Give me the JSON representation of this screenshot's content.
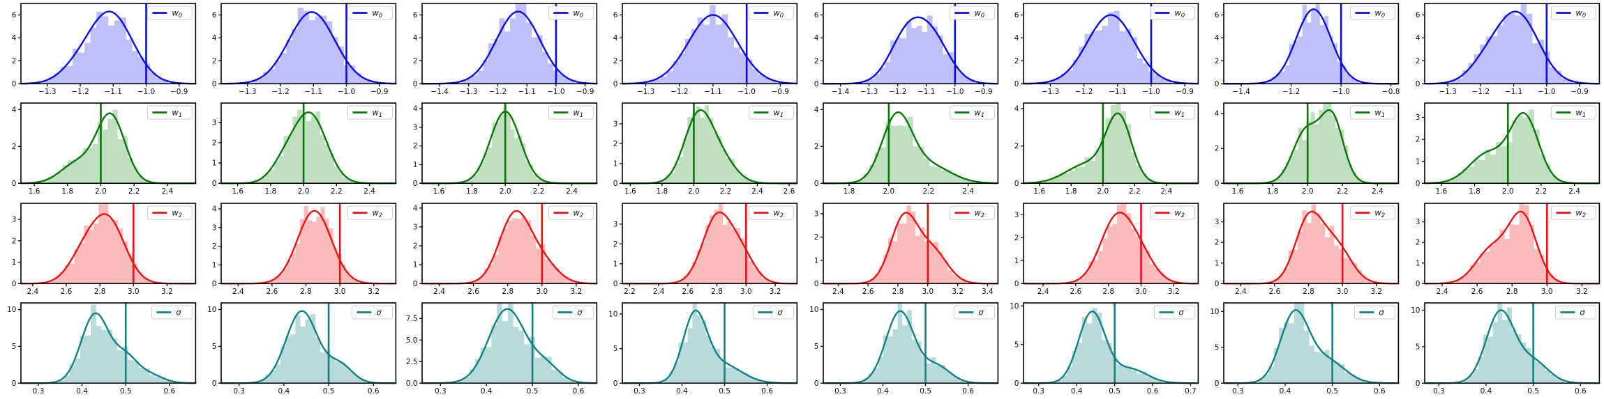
{
  "figure": {
    "background": "#ffffff",
    "grid_rows": 4,
    "grid_cols": 8,
    "description": "Grid of posterior histograms with KDE curves and true-value vertical lines"
  },
  "chart_data": {
    "type": "heatmap",
    "subtype": "histogram-kde-grid",
    "legend_position": "upper right",
    "grid": false,
    "rows": [
      {
        "param": "w0",
        "legend_base": "w",
        "legend_sub": "0",
        "line_color": "#0a0ae6",
        "bar_fill": "rgba(55,55,235,0.32)",
        "vline": -1.0
      },
      {
        "param": "w1",
        "legend_base": "w",
        "legend_sub": "1",
        "line_color": "#067806",
        "bar_fill": "rgba(10,128,10,0.26)",
        "vline": 2.0
      },
      {
        "param": "w2",
        "legend_base": "w",
        "legend_sub": "2",
        "line_color": "#ee1111",
        "bar_fill": "rgba(245,30,30,0.30)",
        "vline": 3.0
      },
      {
        "param": "sigma",
        "legend_base": "σ",
        "legend_sub": "",
        "line_color": "#0f8282",
        "bar_fill": "rgba(22,134,134,0.30)",
        "vline": 0.5
      }
    ],
    "subplots": [
      {
        "r": 0,
        "c": 0,
        "xlim": [
          -1.38,
          -0.85
        ],
        "xticks": [
          -1.3,
          -1.2,
          -1.1,
          -1.0,
          -0.9
        ],
        "ylim": 7.0,
        "yticks": [
          0,
          2,
          4,
          6
        ],
        "mix": [
          [
            -1.11,
            0.068,
            1
          ],
          [
            -1.22,
            0.05,
            0.12
          ]
        ],
        "peak": 6.3
      },
      {
        "r": 0,
        "c": 1,
        "xlim": [
          -1.38,
          -0.85
        ],
        "xticks": [
          -1.3,
          -1.2,
          -1.1,
          -1.0,
          -0.9
        ],
        "ylim": 7.0,
        "yticks": [
          0,
          2,
          4,
          6
        ],
        "mix": [
          [
            -1.105,
            0.07,
            1
          ]
        ],
        "peak": 6.25
      },
      {
        "r": 0,
        "c": 2,
        "xlim": [
          -1.46,
          -0.86
        ],
        "xticks": [
          -1.4,
          -1.3,
          -1.2,
          -1.1,
          -1.0,
          -0.9
        ],
        "ylim": 7.0,
        "yticks": [
          0,
          2,
          4,
          6
        ],
        "mix": [
          [
            -1.13,
            0.075,
            1
          ]
        ],
        "peak": 6.3
      },
      {
        "r": 0,
        "c": 3,
        "xlim": [
          -1.37,
          -0.85
        ],
        "xticks": [
          -1.3,
          -1.2,
          -1.1,
          -1.0,
          -0.9
        ],
        "ylim": 7.0,
        "yticks": [
          0,
          2,
          4,
          6
        ],
        "mix": [
          [
            -1.1,
            0.073,
            1
          ]
        ],
        "peak": 6.0
      },
      {
        "r": 0,
        "c": 4,
        "xlim": [
          -1.46,
          -0.85
        ],
        "xticks": [
          -1.4,
          -1.3,
          -1.2,
          -1.1,
          -1.0,
          -0.9
        ],
        "ylim": 7.0,
        "yticks": [
          0,
          2,
          4,
          6
        ],
        "mix": [
          [
            -1.17,
            0.06,
            0.92
          ],
          [
            -1.08,
            0.062,
            0.88
          ]
        ],
        "peak": 5.8
      },
      {
        "r": 0,
        "c": 5,
        "xlim": [
          -1.38,
          -0.86
        ],
        "xticks": [
          -1.3,
          -1.2,
          -1.1,
          -1.0,
          -0.9
        ],
        "ylim": 7.0,
        "yticks": [
          0,
          2,
          4,
          6
        ],
        "mix": [
          [
            -1.12,
            0.07,
            1
          ]
        ],
        "peak": 6.0
      },
      {
        "r": 0,
        "c": 6,
        "xlim": [
          -1.47,
          -0.77
        ],
        "xticks": [
          -1.4,
          -1.2,
          -1.0,
          -0.8
        ],
        "ylim": 7.0,
        "yticks": [
          0,
          2,
          4,
          6
        ],
        "mix": [
          [
            -1.11,
            0.07,
            1
          ]
        ],
        "peak": 6.5
      },
      {
        "r": 0,
        "c": 7,
        "xlim": [
          -1.37,
          -0.84
        ],
        "xticks": [
          -1.3,
          -1.2,
          -1.1,
          -1.0,
          -0.9
        ],
        "ylim": 7.0,
        "yticks": [
          0,
          2,
          4,
          6
        ],
        "mix": [
          [
            -1.09,
            0.065,
            1
          ],
          [
            -1.19,
            0.05,
            0.2
          ]
        ],
        "peak": 6.3
      },
      {
        "r": 1,
        "c": 0,
        "xlim": [
          1.52,
          2.57
        ],
        "xticks": [
          1.6,
          1.8,
          2.0,
          2.2,
          2.4
        ],
        "ylim": 4.35,
        "yticks": [
          0,
          2,
          4
        ],
        "mix": [
          [
            2.06,
            0.085,
            1
          ],
          [
            1.86,
            0.1,
            0.3
          ]
        ],
        "peak": 3.8
      },
      {
        "r": 1,
        "c": 1,
        "xlim": [
          1.5,
          2.56
        ],
        "xticks": [
          1.6,
          1.8,
          2.0,
          2.2,
          2.4
        ],
        "ylim": 3.95,
        "yticks": [
          0,
          1,
          2,
          3
        ],
        "mix": [
          [
            2.04,
            0.1,
            1
          ],
          [
            1.88,
            0.08,
            0.25
          ]
        ],
        "peak": 3.5
      },
      {
        "r": 1,
        "c": 2,
        "xlim": [
          1.5,
          2.55
        ],
        "xticks": [
          1.6,
          1.8,
          2.0,
          2.2,
          2.4
        ],
        "ylim": 4.3,
        "yticks": [
          0,
          1,
          2,
          3,
          4
        ],
        "mix": [
          [
            2.0,
            0.09,
            1
          ]
        ],
        "peak": 3.85
      },
      {
        "r": 1,
        "c": 3,
        "xlim": [
          1.55,
          2.65
        ],
        "xticks": [
          1.6,
          1.8,
          2.0,
          2.2,
          2.4,
          2.6
        ],
        "ylim": 4.05,
        "yticks": [
          0,
          1,
          2,
          3
        ],
        "mix": [
          [
            2.03,
            0.09,
            1
          ],
          [
            2.18,
            0.09,
            0.3
          ]
        ],
        "peak": 3.7
      },
      {
        "r": 1,
        "c": 4,
        "xlim": [
          1.67,
          2.55
        ],
        "xticks": [
          1.8,
          2.0,
          2.2,
          2.4
        ],
        "ylim": 4.35,
        "yticks": [
          0,
          2,
          4
        ],
        "mix": [
          [
            2.04,
            0.075,
            1
          ],
          [
            2.2,
            0.11,
            0.28
          ]
        ],
        "peak": 3.85
      },
      {
        "r": 1,
        "c": 5,
        "xlim": [
          1.5,
          2.6
        ],
        "xticks": [
          1.6,
          1.8,
          2.0,
          2.2,
          2.4
        ],
        "ylim": 4.3,
        "yticks": [
          0,
          2,
          4
        ],
        "mix": [
          [
            2.1,
            0.08,
            1
          ],
          [
            1.9,
            0.13,
            0.3
          ]
        ],
        "peak": 3.75
      },
      {
        "r": 1,
        "c": 6,
        "xlim": [
          1.52,
          2.52
        ],
        "xticks": [
          1.6,
          1.8,
          2.0,
          2.2,
          2.4
        ],
        "ylim": 4.6,
        "yticks": [
          0,
          2,
          4
        ],
        "mix": [
          [
            2.14,
            0.065,
            1
          ],
          [
            1.99,
            0.075,
            0.8
          ]
        ],
        "peak": 4.2
      },
      {
        "r": 1,
        "c": 7,
        "xlim": [
          1.5,
          2.55
        ],
        "xticks": [
          1.6,
          1.8,
          2.0,
          2.2,
          2.4
        ],
        "ylim": 3.65,
        "yticks": [
          0,
          1,
          2,
          3
        ],
        "mix": [
          [
            2.1,
            0.085,
            1
          ],
          [
            1.88,
            0.11,
            0.45
          ]
        ],
        "peak": 3.2
      },
      {
        "r": 2,
        "c": 0,
        "xlim": [
          2.33,
          3.37
        ],
        "xticks": [
          2.4,
          2.6,
          2.8,
          3.0,
          3.2
        ],
        "ylim": 3.75,
        "yticks": [
          0,
          1,
          2,
          3
        ],
        "mix": [
          [
            2.85,
            0.1,
            1
          ],
          [
            2.7,
            0.09,
            0.4
          ]
        ],
        "peak": 3.25
      },
      {
        "r": 2,
        "c": 1,
        "xlim": [
          2.3,
          3.33
        ],
        "xticks": [
          2.4,
          2.6,
          2.8,
          3.0,
          3.2
        ],
        "ylim": 4.3,
        "yticks": [
          0,
          1,
          2,
          3,
          4
        ],
        "mix": [
          [
            2.85,
            0.1,
            1
          ]
        ],
        "peak": 3.9
      },
      {
        "r": 2,
        "c": 2,
        "xlim": [
          2.3,
          3.32
        ],
        "xticks": [
          2.4,
          2.6,
          2.8,
          3.0,
          3.2
        ],
        "ylim": 4.25,
        "yticks": [
          0,
          1,
          2,
          3,
          4
        ],
        "mix": [
          [
            2.84,
            0.09,
            1
          ],
          [
            3.0,
            0.09,
            0.3
          ]
        ],
        "peak": 3.85
      },
      {
        "r": 2,
        "c": 3,
        "xlim": [
          2.15,
          3.35
        ],
        "xticks": [
          2.2,
          2.4,
          2.6,
          2.8,
          3.0,
          3.2
        ],
        "ylim": 4.05,
        "yticks": [
          0,
          1,
          2,
          3
        ],
        "mix": [
          [
            2.8,
            0.1,
            1
          ],
          [
            2.97,
            0.09,
            0.4
          ]
        ],
        "peak": 3.6
      },
      {
        "r": 2,
        "c": 4,
        "xlim": [
          2.3,
          3.47
        ],
        "xticks": [
          2.4,
          2.6,
          2.8,
          3.0,
          3.2,
          3.4
        ],
        "ylim": 3.45,
        "yticks": [
          0,
          1,
          2,
          3
        ],
        "mix": [
          [
            2.84,
            0.09,
            1
          ],
          [
            3.03,
            0.1,
            0.5
          ]
        ],
        "peak": 3.05
      },
      {
        "r": 2,
        "c": 5,
        "xlim": [
          2.28,
          3.35
        ],
        "xticks": [
          2.4,
          2.6,
          2.8,
          3.0,
          3.2
        ],
        "ylim": 3.5,
        "yticks": [
          0,
          1,
          2,
          3
        ],
        "mix": [
          [
            2.85,
            0.1,
            1
          ],
          [
            3.0,
            0.09,
            0.35
          ]
        ],
        "peak": 3.1
      },
      {
        "r": 2,
        "c": 6,
        "xlim": [
          2.3,
          3.33
        ],
        "xticks": [
          2.4,
          2.6,
          2.8,
          3.0,
          3.2
        ],
        "ylim": 3.9,
        "yticks": [
          0,
          1,
          2,
          3
        ],
        "mix": [
          [
            2.8,
            0.08,
            1
          ],
          [
            2.96,
            0.09,
            0.6
          ]
        ],
        "peak": 3.5
      },
      {
        "r": 2,
        "c": 7,
        "xlim": [
          2.3,
          3.3
        ],
        "xticks": [
          2.4,
          2.6,
          2.8,
          3.0,
          3.2
        ],
        "ylim": 3.9,
        "yticks": [
          0,
          1,
          2,
          3
        ],
        "mix": [
          [
            2.86,
            0.08,
            1
          ],
          [
            2.68,
            0.09,
            0.5
          ]
        ],
        "peak": 3.5
      },
      {
        "r": 3,
        "c": 0,
        "xlim": [
          0.26,
          0.66
        ],
        "xticks": [
          0.3,
          0.4,
          0.5,
          0.6
        ],
        "ylim": 10.9,
        "yticks": [
          0,
          5,
          10
        ],
        "mix": [
          [
            0.43,
            0.032,
            1
          ],
          [
            0.5,
            0.027,
            0.35
          ],
          [
            0.555,
            0.03,
            0.12
          ]
        ],
        "peak": 9.5
      },
      {
        "r": 3,
        "c": 1,
        "xlim": [
          0.26,
          0.65
        ],
        "xticks": [
          0.3,
          0.4,
          0.5,
          0.6
        ],
        "ylim": 10.9,
        "yticks": [
          0,
          5,
          10
        ],
        "mix": [
          [
            0.44,
            0.035,
            1
          ],
          [
            0.525,
            0.028,
            0.25
          ]
        ],
        "peak": 9.8
      },
      {
        "r": 3,
        "c": 2,
        "xlim": [
          0.26,
          0.64
        ],
        "xticks": [
          0.3,
          0.4,
          0.5,
          0.6
        ],
        "ylim": 9.3,
        "yticks": [
          0,
          2.5,
          5,
          7.5
        ],
        "ydec": 1,
        "mix": [
          [
            0.445,
            0.04,
            1
          ],
          [
            0.53,
            0.03,
            0.22
          ]
        ],
        "peak": 8.6
      },
      {
        "r": 3,
        "c": 3,
        "xlim": [
          0.26,
          0.67
        ],
        "xticks": [
          0.3,
          0.4,
          0.5,
          0.6
        ],
        "ylim": 11.6,
        "yticks": [
          0,
          5,
          10
        ],
        "mix": [
          [
            0.43,
            0.028,
            1
          ],
          [
            0.495,
            0.045,
            0.28
          ]
        ],
        "peak": 10.5
      },
      {
        "r": 3,
        "c": 4,
        "xlim": [
          0.26,
          0.67
        ],
        "xticks": [
          0.3,
          0.4,
          0.5,
          0.6
        ],
        "ylim": 10.9,
        "yticks": [
          0,
          5,
          10
        ],
        "mix": [
          [
            0.44,
            0.033,
            1
          ],
          [
            0.525,
            0.033,
            0.24
          ]
        ],
        "peak": 9.8
      },
      {
        "r": 3,
        "c": 5,
        "xlim": [
          0.26,
          0.72
        ],
        "xticks": [
          0.3,
          0.4,
          0.5,
          0.6,
          0.7
        ],
        "ylim": 10.4,
        "yticks": [
          0,
          5,
          10
        ],
        "mix": [
          [
            0.44,
            0.035,
            1
          ],
          [
            0.54,
            0.045,
            0.2
          ]
        ],
        "peak": 9.3
      },
      {
        "r": 3,
        "c": 6,
        "xlim": [
          0.27,
          0.64
        ],
        "xticks": [
          0.3,
          0.4,
          0.5,
          0.6
        ],
        "ylim": 11.2,
        "yticks": [
          0,
          5,
          10
        ],
        "mix": [
          [
            0.42,
            0.03,
            1
          ],
          [
            0.49,
            0.037,
            0.32
          ]
        ],
        "peak": 10.2
      },
      {
        "r": 3,
        "c": 7,
        "xlim": [
          0.27,
          0.64
        ],
        "xticks": [
          0.3,
          0.4,
          0.5,
          0.6
        ],
        "ylim": 11.0,
        "yticks": [
          0,
          5,
          10
        ],
        "mix": [
          [
            0.43,
            0.03,
            1
          ],
          [
            0.5,
            0.032,
            0.3
          ]
        ],
        "peak": 10.0
      }
    ]
  }
}
